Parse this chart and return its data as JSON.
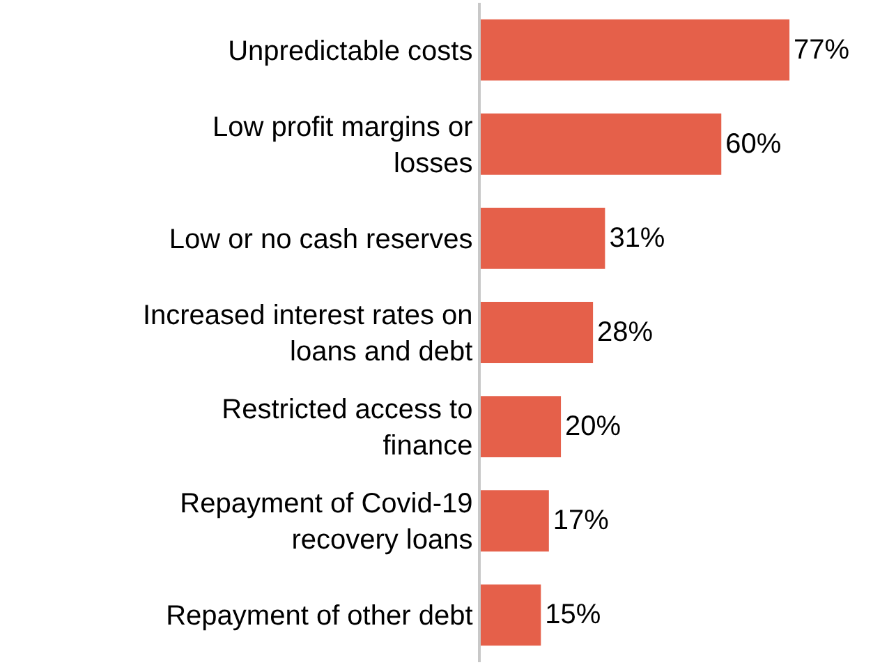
{
  "chart_data": {
    "type": "bar",
    "orientation": "horizontal",
    "categories": [
      "Unpredictable costs",
      "Low profit margins or losses",
      "Low or no cash reserves",
      "Increased interest rates on loans and debt",
      "Restricted access to finance",
      "Repayment of Covid-19 recovery loans",
      "Repayment of other debt"
    ],
    "values": [
      77,
      60,
      31,
      28,
      20,
      17,
      15
    ],
    "value_labels": [
      "77%",
      "60%",
      "31%",
      "28%",
      "20%",
      "17%",
      "15%"
    ],
    "color": "#e5604a"
  }
}
